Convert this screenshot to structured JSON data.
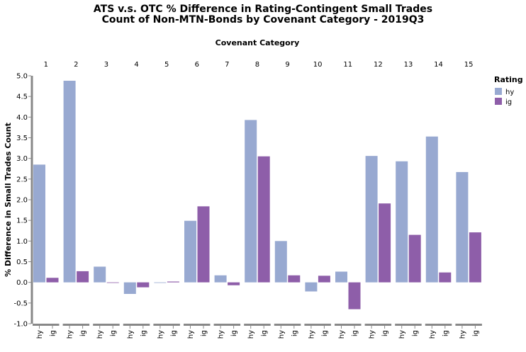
{
  "chart_data": {
    "type": "bar",
    "title_lines": [
      "ATS v.s. OTC % Difference in Rating-Contingent Small Trades",
      "Count of Non-MTN-Bonds by Covenant Category - 2019Q3"
    ],
    "column_title": "Covenant Category",
    "ylabel": "% Difference in Small Trades Count",
    "ylim": [
      -1.0,
      5.0
    ],
    "yticks": [
      "5.0",
      "4.5",
      "4.0",
      "3.5",
      "3.0",
      "2.5",
      "2.0",
      "1.5",
      "1.0",
      "0.5",
      "0.0",
      "-0.5",
      "-1.0"
    ],
    "ytick_values": [
      5.0,
      4.5,
      4.0,
      3.5,
      3.0,
      2.5,
      2.0,
      1.5,
      1.0,
      0.5,
      0.0,
      -0.5,
      -1.0
    ],
    "grid": false,
    "legend": {
      "title": "Rating",
      "placement": "right",
      "items": [
        {
          "label": "hy",
          "color": "#98a9d1"
        },
        {
          "label": "ig",
          "color": "#8e5ea9"
        }
      ]
    },
    "x_labels": [
      "hy",
      "ig"
    ],
    "categories": [
      "1",
      "2",
      "3",
      "4",
      "5",
      "6",
      "7",
      "8",
      "9",
      "10",
      "11",
      "12",
      "13",
      "14",
      "15"
    ],
    "series": [
      {
        "name": "hy",
        "color": "#98a9d1",
        "values": [
          2.85,
          4.88,
          0.38,
          -0.28,
          0.0,
          1.49,
          0.17,
          3.93,
          1.0,
          -0.22,
          0.26,
          3.06,
          2.93,
          3.53,
          2.67
        ]
      },
      {
        "name": "ig",
        "color": "#8e5ea9",
        "values": [
          0.11,
          0.27,
          0.0,
          -0.12,
          0.02,
          1.84,
          -0.07,
          3.05,
          0.17,
          0.16,
          -0.65,
          1.91,
          1.15,
          0.24,
          1.21
        ]
      }
    ]
  }
}
